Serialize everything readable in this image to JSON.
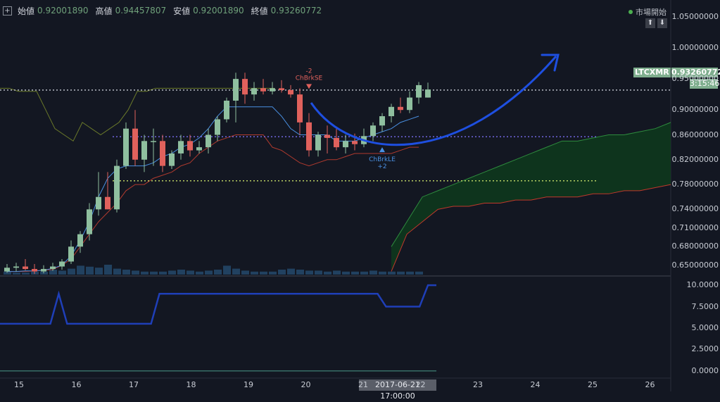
{
  "header": {
    "open_label": "始値",
    "open_value": "0.92001890",
    "high_label": "高値",
    "high_value": "0.94457807",
    "low_label": "安値",
    "low_value": "0.92001890",
    "close_label": "終値",
    "close_value": "0.93260772"
  },
  "market_status": "市場開始",
  "symbol_badge": "LTCXMR",
  "price_badge": "0.93260772",
  "countdown_badge": "3:15:46",
  "crosshair_date": "2017-06-21 17:00:00",
  "colors": {
    "background": "#131722",
    "up_candle": "#8fbf9f",
    "down_candle": "#e0615c",
    "kijun": "#4a90e2",
    "cloud": "#0e3a1c",
    "drawn_arrow": "#1e4fe0",
    "indicator_line": "#1f3fb8"
  },
  "chart_data": [
    {
      "type": "candlestick",
      "y_axis_ticks": [
        "1.05000000",
        "1.00000000",
        "0.95000000",
        "0.90000000",
        "0.86000000",
        "0.82000000",
        "0.78000000",
        "0.74000000",
        "0.71000000",
        "0.68000000",
        "0.65000000"
      ],
      "x_axis_ticks": [
        "15",
        "16",
        "17",
        "18",
        "19",
        "20",
        "21",
        "22",
        "23",
        "24",
        "25",
        "26"
      ],
      "ylim": [
        0.635,
        1.068
      ],
      "annotations": [
        {
          "label": "ChBrkSE",
          "value": "-2",
          "color": "#e0615c"
        },
        {
          "label": "ChBrkLE",
          "value": "+2",
          "color": "#4a90e2"
        }
      ],
      "candles": [
        {
          "o": 0.64,
          "h": 0.652,
          "l": 0.638,
          "c": 0.646
        },
        {
          "o": 0.646,
          "h": 0.654,
          "l": 0.64,
          "c": 0.648
        },
        {
          "o": 0.648,
          "h": 0.66,
          "l": 0.642,
          "c": 0.644
        },
        {
          "o": 0.644,
          "h": 0.652,
          "l": 0.636,
          "c": 0.64
        },
        {
          "o": 0.64,
          "h": 0.65,
          "l": 0.637,
          "c": 0.644
        },
        {
          "o": 0.644,
          "h": 0.654,
          "l": 0.641,
          "c": 0.648
        },
        {
          "o": 0.648,
          "h": 0.66,
          "l": 0.643,
          "c": 0.656
        },
        {
          "o": 0.656,
          "h": 0.69,
          "l": 0.652,
          "c": 0.68
        },
        {
          "o": 0.68,
          "h": 0.705,
          "l": 0.67,
          "c": 0.7
        },
        {
          "o": 0.7,
          "h": 0.75,
          "l": 0.69,
          "c": 0.74
        },
        {
          "o": 0.74,
          "h": 0.8,
          "l": 0.73,
          "c": 0.76
        },
        {
          "o": 0.76,
          "h": 0.8,
          "l": 0.74,
          "c": 0.74
        },
        {
          "o": 0.74,
          "h": 0.82,
          "l": 0.735,
          "c": 0.81
        },
        {
          "o": 0.81,
          "h": 0.88,
          "l": 0.805,
          "c": 0.87
        },
        {
          "o": 0.87,
          "h": 0.9,
          "l": 0.81,
          "c": 0.82
        },
        {
          "o": 0.82,
          "h": 0.86,
          "l": 0.8,
          "c": 0.85
        },
        {
          "o": 0.85,
          "h": 0.87,
          "l": 0.81,
          "c": 0.85
        },
        {
          "o": 0.85,
          "h": 0.86,
          "l": 0.8,
          "c": 0.81
        },
        {
          "o": 0.81,
          "h": 0.835,
          "l": 0.805,
          "c": 0.83
        },
        {
          "o": 0.83,
          "h": 0.86,
          "l": 0.82,
          "c": 0.85
        },
        {
          "o": 0.85,
          "h": 0.86,
          "l": 0.825,
          "c": 0.835
        },
        {
          "o": 0.835,
          "h": 0.85,
          "l": 0.83,
          "c": 0.84
        },
        {
          "o": 0.84,
          "h": 0.87,
          "l": 0.83,
          "c": 0.86
        },
        {
          "o": 0.86,
          "h": 0.89,
          "l": 0.85,
          "c": 0.885
        },
        {
          "o": 0.885,
          "h": 0.92,
          "l": 0.88,
          "c": 0.915
        },
        {
          "o": 0.915,
          "h": 0.96,
          "l": 0.88,
          "c": 0.95
        },
        {
          "o": 0.95,
          "h": 0.96,
          "l": 0.91,
          "c": 0.925
        },
        {
          "o": 0.925,
          "h": 0.945,
          "l": 0.915,
          "c": 0.935
        },
        {
          "o": 0.935,
          "h": 0.95,
          "l": 0.925,
          "c": 0.93
        },
        {
          "o": 0.93,
          "h": 0.945,
          "l": 0.925,
          "c": 0.935
        },
        {
          "o": 0.935,
          "h": 0.948,
          "l": 0.928,
          "c": 0.932
        },
        {
          "o": 0.932,
          "h": 0.94,
          "l": 0.92,
          "c": 0.925
        },
        {
          "o": 0.925,
          "h": 0.935,
          "l": 0.86,
          "c": 0.88
        },
        {
          "o": 0.88,
          "h": 0.895,
          "l": 0.825,
          "c": 0.835
        },
        {
          "o": 0.835,
          "h": 0.865,
          "l": 0.825,
          "c": 0.86
        },
        {
          "o": 0.86,
          "h": 0.875,
          "l": 0.83,
          "c": 0.855
        },
        {
          "o": 0.855,
          "h": 0.87,
          "l": 0.835,
          "c": 0.84
        },
        {
          "o": 0.84,
          "h": 0.86,
          "l": 0.83,
          "c": 0.85
        },
        {
          "o": 0.85,
          "h": 0.862,
          "l": 0.835,
          "c": 0.845
        },
        {
          "o": 0.845,
          "h": 0.87,
          "l": 0.84,
          "c": 0.858
        },
        {
          "o": 0.858,
          "h": 0.88,
          "l": 0.85,
          "c": 0.875
        },
        {
          "o": 0.875,
          "h": 0.895,
          "l": 0.865,
          "c": 0.89
        },
        {
          "o": 0.89,
          "h": 0.91,
          "l": 0.88,
          "c": 0.905
        },
        {
          "o": 0.905,
          "h": 0.92,
          "l": 0.895,
          "c": 0.9
        },
        {
          "o": 0.9,
          "h": 0.93,
          "l": 0.895,
          "c": 0.92
        },
        {
          "o": 0.92,
          "h": 0.945,
          "l": 0.91,
          "c": 0.94
        },
        {
          "o": 0.92,
          "h": 0.944,
          "l": 0.92,
          "c": 0.933
        }
      ],
      "kijun": [
        0.64,
        0.64,
        0.641,
        0.641,
        0.642,
        0.645,
        0.65,
        0.665,
        0.69,
        0.72,
        0.76,
        0.79,
        0.805,
        0.81,
        0.81,
        0.81,
        0.815,
        0.825,
        0.83,
        0.84,
        0.845,
        0.855,
        0.87,
        0.89,
        0.905,
        0.905,
        0.905,
        0.905,
        0.905,
        0.905,
        0.89,
        0.87,
        0.86,
        0.86,
        0.86,
        0.86,
        0.85,
        0.85,
        0.85,
        0.855,
        0.86,
        0.865,
        0.87,
        0.88,
        0.885,
        0.89
      ],
      "tenkan": [
        0.64,
        0.64,
        0.64,
        0.641,
        0.642,
        0.643,
        0.65,
        0.66,
        0.68,
        0.7,
        0.72,
        0.735,
        0.75,
        0.77,
        0.78,
        0.78,
        0.79,
        0.795,
        0.8,
        0.81,
        0.815,
        0.83,
        0.84,
        0.85,
        0.855,
        0.86,
        0.86,
        0.86,
        0.86,
        0.84,
        0.835,
        0.825,
        0.815,
        0.81,
        0.815,
        0.82,
        0.82,
        0.825,
        0.83,
        0.83,
        0.83,
        0.83,
        0.83,
        0.835,
        0.84,
        0.84
      ],
      "chikou": [
        0.935,
        0.935,
        0.93,
        0.93,
        0.93,
        0.9,
        0.87,
        0.86,
        0.85,
        0.88,
        0.87,
        0.86,
        0.87,
        0.88,
        0.9,
        0.93,
        0.93,
        0.935,
        0.935,
        0.935,
        0.935,
        0.935,
        0.935,
        0.935,
        0.935,
        0.935,
        0.935,
        0.935,
        0.935,
        0.935,
        0.935
      ],
      "span_b": [
        0.64,
        0.7,
        0.72,
        0.74,
        0.745,
        0.745,
        0.75,
        0.75,
        0.755,
        0.755,
        0.76,
        0.76,
        0.76,
        0.765,
        0.765,
        0.77,
        0.77,
        0.775,
        0.78
      ],
      "span_a": [
        0.68,
        0.72,
        0.76,
        0.77,
        0.78,
        0.79,
        0.8,
        0.81,
        0.82,
        0.83,
        0.84,
        0.85,
        0.85,
        0.855,
        0.86,
        0.86,
        0.865,
        0.87,
        0.88
      ],
      "horizontal_levels": [
        {
          "value": 0.932,
          "color": "#c8ccd4",
          "style": "dotted"
        },
        {
          "value": 0.857,
          "color": "#7a6cf0",
          "style": "dotted"
        },
        {
          "value": 0.786,
          "color": "#c8e06a",
          "style": "dotted"
        }
      ],
      "volume": [
        0.3,
        0.2,
        0.2,
        0.3,
        0.3,
        0.5,
        0.4,
        0.6,
        0.9,
        0.8,
        0.7,
        1.0,
        0.6,
        0.5,
        0.4,
        0.3,
        0.3,
        0.3,
        0.4,
        0.5,
        0.4,
        0.3,
        0.4,
        0.5,
        0.9,
        0.6,
        0.4,
        0.3,
        0.3,
        0.3,
        0.5,
        0.6,
        0.5,
        0.4,
        0.4,
        0.3,
        0.4,
        0.3,
        0.3,
        0.3,
        0.4,
        0.3,
        0.3,
        0.3,
        0.3,
        0.3
      ]
    },
    {
      "type": "line",
      "y_axis_ticks": [
        "10.0000",
        "7.5000",
        "5.0000",
        "2.5000",
        "0.0000"
      ],
      "ylim": [
        -0.5,
        10.5
      ],
      "values": [
        5.5,
        5.5,
        5.5,
        5.5,
        5.5,
        5.5,
        5.5,
        9,
        5.5,
        5.5,
        5.5,
        5.5,
        5.5,
        5.5,
        5.5,
        5.5,
        5.5,
        5.5,
        5.5,
        9,
        9,
        9,
        9,
        9,
        9,
        9,
        9,
        9,
        9,
        9,
        9,
        9,
        9,
        9,
        9,
        9,
        9,
        9,
        9,
        9,
        9,
        9,
        9,
        9,
        9,
        9,
        7.5,
        7.5,
        7.5,
        7.5,
        7.5,
        10,
        10
      ]
    }
  ]
}
